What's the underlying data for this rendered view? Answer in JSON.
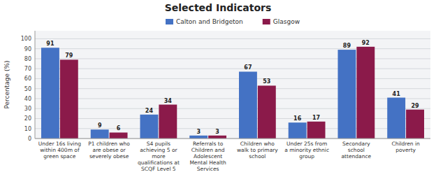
{
  "chart_data": {
    "type": "bar",
    "title": "Selected Indicators",
    "categories": [
      "Under 16s living\nwithin 400m of\ngreen space",
      "P1 children who\nare obese or\nseverely obese",
      "S4 pupils\nachieving 5 or\nmore\nqualifications at\nSCQF Level 5",
      "Referrals to\nChildren and\nAdolescent\nMental Health\nServices",
      "Children who\nwalk to primary\nschool",
      "Under 25s from\na minority ethnic\ngroup",
      "Secondary\nschool\nattendance",
      "Children in\npoverty"
    ],
    "series": [
      {
        "name": "Calton and Bridgeton",
        "color": "#4472C4",
        "values": [
          91,
          9,
          24,
          3,
          67,
          16,
          89,
          41
        ]
      },
      {
        "name": "Glasgow",
        "color": "#8B1A4A",
        "values": [
          79,
          6,
          34,
          3,
          53,
          17,
          92,
          29
        ]
      }
    ],
    "ylabel": "Percentage (%)",
    "ylim": [
      0,
      108
    ],
    "yticks": [
      0,
      10,
      20,
      30,
      40,
      50,
      60,
      70,
      80,
      90,
      100
    ],
    "grid": true,
    "legend": "top",
    "data_labels": true
  }
}
